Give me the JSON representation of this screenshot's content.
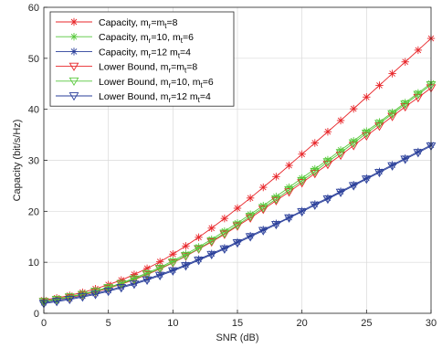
{
  "chart_data": {
    "type": "line",
    "xlabel": "SNR (dB)",
    "ylabel": "Capacity (bit/s/Hz)",
    "xlim": [
      0,
      30
    ],
    "ylim": [
      0,
      60
    ],
    "x_ticks": [
      0,
      5,
      10,
      15,
      20,
      25,
      30
    ],
    "y_ticks": [
      0,
      10,
      20,
      30,
      40,
      50,
      60
    ],
    "x_tick_labels": [
      "0",
      "5",
      "10",
      "15",
      "20",
      "25",
      "30"
    ],
    "y_tick_labels": [
      "0",
      "10",
      "20",
      "30",
      "40",
      "50",
      "60"
    ],
    "grid": true,
    "legend_position": "top-left",
    "x": [
      0,
      1,
      2,
      3,
      4,
      5,
      6,
      7,
      8,
      9,
      10,
      11,
      12,
      13,
      14,
      15,
      16,
      17,
      18,
      19,
      20,
      21,
      22,
      23,
      24,
      25,
      26,
      27,
      28,
      29,
      30
    ],
    "series": [
      {
        "name_parts": [
          "Capacity, m",
          "r",
          "=m",
          "t",
          "=8"
        ],
        "color": "#e8262a",
        "marker": "star",
        "values": [
          2.6,
          3.0,
          3.5,
          4.1,
          4.8,
          5.6,
          6.5,
          7.6,
          8.8,
          10.1,
          11.6,
          13.2,
          14.9,
          16.7,
          18.6,
          20.6,
          22.6,
          24.7,
          26.8,
          29.0,
          31.2,
          33.4,
          35.6,
          37.8,
          40.1,
          42.4,
          44.7,
          47.0,
          49.3,
          51.6,
          53.9
        ]
      },
      {
        "name_parts": [
          "Capacity, m",
          "r",
          "=10, m",
          "t",
          "=6"
        ],
        "color": "#56c83a",
        "marker": "star",
        "values": [
          2.4,
          2.8,
          3.3,
          3.8,
          4.4,
          5.1,
          5.9,
          6.9,
          7.9,
          9.0,
          10.3,
          11.6,
          13.0,
          14.5,
          16.1,
          17.7,
          19.4,
          21.1,
          22.9,
          24.7,
          26.5,
          28.3,
          30.1,
          32.0,
          33.8,
          35.7,
          37.5,
          39.4,
          41.3,
          43.2,
          45.1
        ]
      },
      {
        "name_parts": [
          "Capacity, m",
          "r",
          "=12 m",
          "t",
          "=4"
        ],
        "color": "#2a3f9a",
        "marker": "star",
        "values": [
          2.1,
          2.5,
          2.9,
          3.4,
          3.9,
          4.5,
          5.2,
          5.9,
          6.7,
          7.6,
          8.5,
          9.5,
          10.6,
          11.7,
          12.8,
          14.0,
          15.2,
          16.4,
          17.6,
          18.8,
          20.1,
          21.4,
          22.6,
          23.9,
          25.2,
          26.5,
          27.8,
          29.1,
          30.4,
          31.7,
          33.0
        ]
      },
      {
        "name_parts": [
          "Lower Bound, m",
          "r",
          "=m",
          "t",
          "=8"
        ],
        "color": "#e8262a",
        "marker": "triangle-down",
        "values": [
          2.3,
          2.7,
          3.1,
          3.6,
          4.2,
          4.9,
          5.7,
          6.6,
          7.6,
          8.7,
          9.9,
          11.2,
          12.6,
          14.0,
          15.5,
          17.1,
          18.7,
          20.4,
          22.1,
          23.8,
          25.6,
          27.4,
          29.2,
          31.0,
          32.9,
          34.8,
          36.7,
          38.6,
          40.5,
          42.3,
          44.2
        ]
      },
      {
        "name_parts": [
          "Lower Bound, m",
          "r",
          "=10, m",
          "t",
          "=6"
        ],
        "color": "#56c83a",
        "marker": "triangle-down",
        "values": [
          2.3,
          2.7,
          3.2,
          3.7,
          4.3,
          5.0,
          5.8,
          6.7,
          7.7,
          8.8,
          10.0,
          11.3,
          12.7,
          14.2,
          15.7,
          17.3,
          19.0,
          20.7,
          22.4,
          24.2,
          26.0,
          27.8,
          29.7,
          31.5,
          33.4,
          35.3,
          37.2,
          39.1,
          41.0,
          42.9,
          44.8
        ]
      },
      {
        "name_parts": [
          "Lower Bound, m",
          "r",
          "=12 m",
          "t",
          "=4"
        ],
        "color": "#2a3f9a",
        "marker": "triangle-down",
        "values": [
          1.9,
          2.3,
          2.7,
          3.2,
          3.7,
          4.3,
          5.0,
          5.7,
          6.5,
          7.4,
          8.3,
          9.3,
          10.4,
          11.5,
          12.6,
          13.8,
          15.0,
          16.2,
          17.4,
          18.7,
          19.9,
          21.2,
          22.4,
          23.7,
          25.0,
          26.3,
          27.6,
          28.9,
          30.2,
          31.5,
          32.8
        ]
      }
    ]
  }
}
